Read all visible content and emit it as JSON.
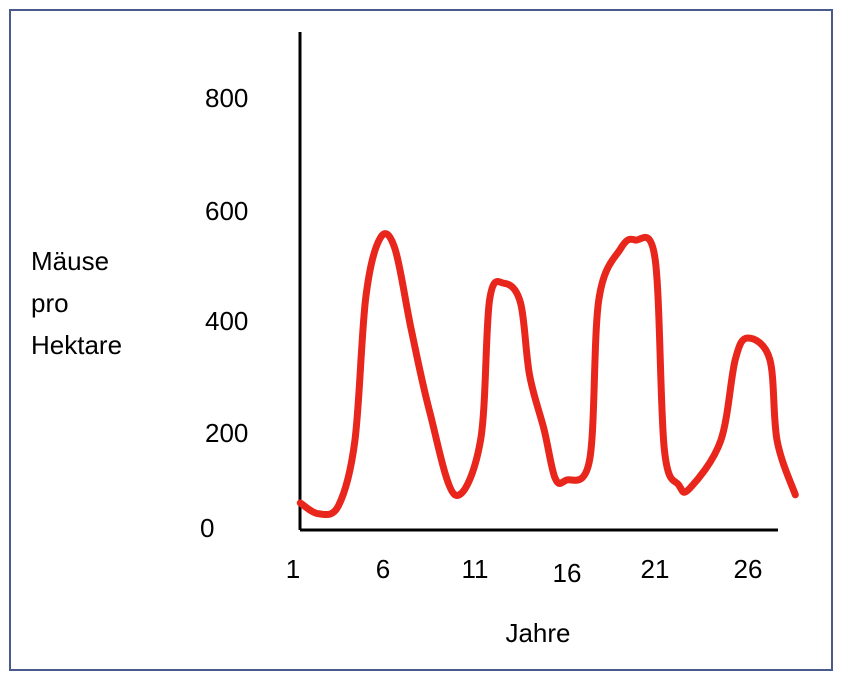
{
  "chart_data": {
    "type": "line",
    "title": "",
    "xlabel": "Jahre",
    "ylabel": [
      "Mäuse",
      "pro",
      "Hektare"
    ],
    "x_ticks": [
      "1",
      "6",
      "11",
      "16",
      "21",
      "26"
    ],
    "y_ticks": [
      "0",
      "200",
      "400",
      "600",
      "800"
    ],
    "xlim": [
      1,
      28.5
    ],
    "ylim": [
      0,
      900
    ],
    "grid": false,
    "series": [
      {
        "color": "#e8261c",
        "x": [
          1.4,
          2.4,
          3.5,
          4.4,
          5,
          5.8,
          6.6,
          7.5,
          8.5,
          9.9,
          11.3,
          11.8,
          12.6,
          13.5,
          14,
          14.8,
          15.4,
          16,
          17.3,
          17.8,
          19,
          19.8,
          20.9,
          21.4,
          22.2,
          22.8,
          24.5,
          25.3,
          26,
          27.2,
          27.6,
          28.6
        ],
        "y": [
          50,
          30,
          45,
          165,
          430,
          540,
          520,
          370,
          220,
          65,
          165,
          425,
          456,
          420,
          286,
          185,
          96,
          92,
          130,
          425,
          520,
          536,
          500,
          150,
          83,
          77,
          165,
          315,
          355,
          315,
          165,
          65
        ]
      }
    ]
  }
}
